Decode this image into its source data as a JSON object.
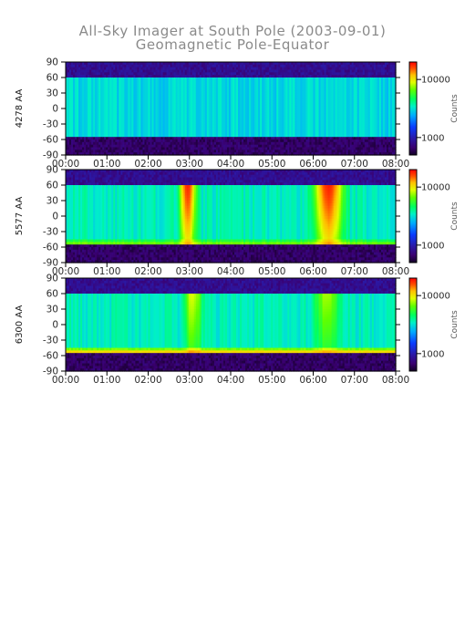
{
  "title": {
    "line1": "All-Sky Imager at South Pole (2003-09-01)",
    "line2": "Geomagnetic Pole-Equator"
  },
  "chart_data": [
    {
      "type": "heatmap",
      "panel_label": "4278 AA",
      "x_ticks": [
        "00:00",
        "01:00",
        "02:00",
        "03:00",
        "04:00",
        "05:00",
        "06:00",
        "07:00",
        "08:00"
      ],
      "y_ticks": [
        "90",
        "60",
        "30",
        "0",
        "-30",
        "-60",
        "-90"
      ],
      "xlim": [
        "00:00",
        "08:00"
      ],
      "ylim": [
        -90,
        90
      ],
      "colorbar": {
        "label": "Counts",
        "tick_labels": [
          "10000",
          "1000"
        ],
        "scale": "log",
        "range": [
          500,
          20000
        ]
      },
      "valid_lat_range": [
        -55,
        60
      ],
      "baseline_counts": 3000,
      "low_edge_enhancement_counts": 0,
      "aurora_events": []
    },
    {
      "type": "heatmap",
      "panel_label": "5577 AA",
      "x_ticks": [
        "00:00",
        "01:00",
        "02:00",
        "03:00",
        "04:00",
        "05:00",
        "06:00",
        "07:00",
        "08:00"
      ],
      "y_ticks": [
        "90",
        "60",
        "30",
        "0",
        "-30",
        "-60",
        "-90"
      ],
      "xlim": [
        "00:00",
        "08:00"
      ],
      "ylim": [
        -90,
        90
      ],
      "colorbar": {
        "label": "Counts",
        "tick_labels": [
          "10000",
          "1000"
        ],
        "scale": "log",
        "range": [
          500,
          20000
        ]
      },
      "valid_lat_range": [
        -55,
        60
      ],
      "baseline_counts": 3500,
      "low_edge_enhancement_counts": 4000,
      "aurora_events": [
        {
          "start": "02:45",
          "end": "03:10",
          "peak_counts": 18000
        },
        {
          "start": "06:00",
          "end": "06:45",
          "peak_counts": 18000
        }
      ]
    },
    {
      "type": "heatmap",
      "panel_label": "6300 AA",
      "x_ticks": [
        "00:00",
        "01:00",
        "02:00",
        "03:00",
        "04:00",
        "05:00",
        "06:00",
        "07:00",
        "08:00"
      ],
      "y_ticks": [
        "90",
        "60",
        "30",
        "0",
        "-30",
        "-60",
        "-90"
      ],
      "xlim": [
        "00:00",
        "08:00"
      ],
      "ylim": [
        -90,
        90
      ],
      "colorbar": {
        "label": "Counts",
        "tick_labels": [
          "10000",
          "1000"
        ],
        "scale": "log",
        "range": [
          500,
          20000
        ]
      },
      "valid_lat_range": [
        -55,
        60
      ],
      "baseline_counts": 3500,
      "low_edge_enhancement_counts": 9000,
      "aurora_events": [
        {
          "start": "02:50",
          "end": "03:20",
          "peak_counts": 9000
        },
        {
          "start": "06:00",
          "end": "06:40",
          "peak_counts": 8000
        }
      ]
    }
  ]
}
